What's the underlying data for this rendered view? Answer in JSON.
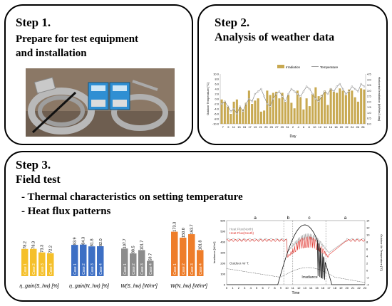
{
  "step1": {
    "title": "Step 1.",
    "subtitle": "Prepare for test equipment",
    "subtitle2": "and installation"
  },
  "step2": {
    "title": "Step 2.",
    "subtitle": "Analysis of weather data",
    "chart_data": {
      "type": "bar+line",
      "legend": [
        "Irradiation",
        "Temperature"
      ],
      "ylabel_left": "Outdoor Temperature [°C]",
      "ylabel_right": "Horizontal Irradiation [kWh/m2.day]",
      "xlabel": "Day",
      "y_left_ticks": [
        "10.0",
        "8.0",
        "6.0",
        "4.0",
        "2.0",
        "0.0",
        "-2.0",
        "-4.0",
        "-6.0",
        "-8.0",
        "-10.0"
      ],
      "y_right_ticks": [
        "4.5",
        "4.0",
        "3.5",
        "3.0",
        "2.5",
        "2.0",
        "1.5",
        "1.0",
        "0.5",
        "0.0"
      ],
      "x_ticks": [
        "7",
        "9",
        "11",
        "13",
        "15",
        "17",
        "19",
        "21",
        "23",
        "25",
        "27",
        "29",
        "31",
        "2",
        "4",
        "6",
        "8",
        "10",
        "12",
        "14",
        "16",
        "18",
        "20",
        "22",
        "24",
        "26",
        "28"
      ],
      "irradiation": [
        2.2,
        2.0,
        1.6,
        0.9,
        2.0,
        2.2,
        1.5,
        1.3,
        1.9,
        3.0,
        1.8,
        2.1,
        2.3,
        1.1,
        1.2,
        3.0,
        2.6,
        2.8,
        2.9,
        2.3,
        2.8,
        2.0,
        2.6,
        1.9,
        1.4,
        3.0,
        2.4,
        1.3,
        2.3,
        1.6,
        2.7,
        3.3,
        2.5,
        2.6,
        3.0,
        1.7,
        3.2,
        2.9,
        2.8,
        3.2,
        3.0,
        2.6,
        3.1,
        3.0,
        2.4,
        2.0,
        3.2,
        3.1
      ],
      "temperature": [
        -2,
        -1,
        -3,
        -5,
        -4,
        -6,
        -3,
        -5,
        -2,
        0,
        -1,
        2,
        3,
        4,
        1,
        -2,
        -3,
        0,
        2,
        3,
        1,
        -1,
        2,
        4,
        3,
        2,
        1,
        3,
        5,
        4,
        2,
        0,
        -1,
        1,
        3,
        2,
        4,
        3,
        5,
        6,
        4,
        2,
        3,
        5,
        4,
        3,
        6,
        5
      ]
    }
  },
  "step3": {
    "title": "Step 3.",
    "subtitle": "Field test",
    "bullet1": "- Thermal characteristics on setting temperature",
    "bullet2": "- Heat flux patterns",
    "charts": [
      {
        "id": "eta_s",
        "label": "η_gain(S_hw) [%]",
        "color": "#F5C02B",
        "cases": [
          "Case 1",
          "Case 2",
          "Case 3",
          "Case 4"
        ],
        "values": [
          78.2,
          78.3,
          73.3,
          72.2
        ]
      },
      {
        "id": "eta_n",
        "label": "η_gain(N_hw) [%]",
        "color": "#3D6FC4",
        "cases": [
          "Case 1",
          "Case 2",
          "Case 3",
          "Case 4"
        ],
        "values": [
          83.9,
          84.3,
          81.8,
          82.0
        ]
      },
      {
        "id": "w_s",
        "label": "W(S_hw) [W/m²]",
        "color": "#8C8C8C",
        "cases": [
          "Case 1",
          "Case 2",
          "Case 3",
          "Case 4"
        ],
        "values": [
          107.7,
          88.5,
          101.7,
          59.7
        ]
      },
      {
        "id": "w_n",
        "label": "W(N_hw) [W/m²]",
        "color": "#EE7D2A",
        "cases": [
          "Case 1",
          "Case 2",
          "Case 3",
          "Case 4"
        ],
        "values": [
          173.3,
          150.0,
          163.7,
          101.8
        ]
      }
    ],
    "flux": {
      "regions": [
        "a",
        "b",
        "c",
        "a"
      ],
      "series": [
        "Heat Flux(North)",
        "Heat Flux(South)",
        "Outdoor Air T.",
        "Irradiance"
      ],
      "ylabel_left": "Irradiance [W/m²]",
      "ylabel_right": "Outdoor Air Temperature [°C]",
      "xlabel": "Time",
      "y_left_ticks": [
        "600",
        "500",
        "400",
        "300",
        "200",
        "100",
        "0"
      ],
      "y_right_ticks": [
        "14",
        "12",
        "10",
        "8",
        "6",
        "4",
        "2",
        "0",
        "-2",
        "-4"
      ],
      "x_ticks": [
        "0",
        "1",
        "2",
        "3",
        "4",
        "5",
        "6",
        "7",
        "8",
        "9",
        "10",
        "11",
        "12",
        "13",
        "14",
        "15",
        "16",
        "17",
        "18",
        "19",
        "20",
        "21",
        "22",
        "23"
      ]
    }
  }
}
